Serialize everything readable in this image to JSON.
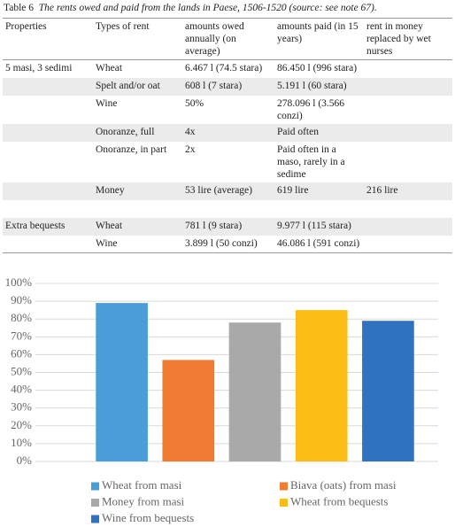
{
  "caption": {
    "label": "Table 6",
    "title": "The rents owed and paid from the lands in Paese, 1506-1520 (source: see note 67)."
  },
  "table": {
    "header": [
      "Properties",
      "Types of rent",
      "amounts owed annually (on average)",
      "amounts paid (in 15 years)",
      "rent in money replaced by wet nurses"
    ],
    "rows": [
      [
        "5 masi, 3 sedimi",
        "Wheat",
        "6.467 l (74.5 stara)",
        "86.450 l (996 stara)",
        null
      ],
      [
        null,
        "Spelt and/or oat",
        "608 l (7 stara)",
        "5.191 l (60 stara)",
        null
      ],
      [
        null,
        "Wine",
        "50%",
        "278.096 l (3.566 conzi)",
        null
      ],
      [
        null,
        "Onoranze, full",
        "4x",
        "Paid often",
        null
      ],
      [
        null,
        "Onoranze, in part",
        "2x",
        "Paid often in a maso, rarely in a sedime",
        null
      ],
      [
        null,
        "Money",
        "53 lire (average)",
        "619 lire",
        "216 lire"
      ],
      [
        null,
        null,
        null,
        null,
        null
      ],
      [
        "Extra bequests",
        "Wheat",
        "781 l (9 stara)",
        "9.977 l (115 stara)",
        null
      ],
      [
        null,
        "Wine",
        "3.899 l (50 conzi)",
        "46.086 l (591 conzi)",
        null
      ]
    ]
  },
  "chart_data": {
    "type": "bar",
    "categories": [
      "Wheat from masi",
      "Biava (oats) from masi",
      "Money from masi",
      "Wheat from bequests",
      "Wine from bequests"
    ],
    "values": [
      89,
      57,
      78,
      85,
      79
    ],
    "colors": [
      "#4a9ed8",
      "#f07c34",
      "#a9a9a9",
      "#fbbd13",
      "#2f73c0"
    ],
    "ylim": [
      0,
      100
    ],
    "yticks": [
      {
        "value": 0,
        "label": "0%"
      },
      {
        "value": 10,
        "label": "10%"
      },
      {
        "value": 20,
        "label": "20%"
      },
      {
        "value": 30,
        "label": "30%"
      },
      {
        "value": 40,
        "label": "40%"
      },
      {
        "value": 50,
        "label": "50%"
      },
      {
        "value": 60,
        "label": "60%"
      },
      {
        "value": 70,
        "label": "70%"
      },
      {
        "value": 80,
        "label": "80%"
      },
      {
        "value": 90,
        "label": "90%"
      },
      {
        "value": 100,
        "label": "100%"
      }
    ],
    "grid": true,
    "legend": "bottom"
  }
}
